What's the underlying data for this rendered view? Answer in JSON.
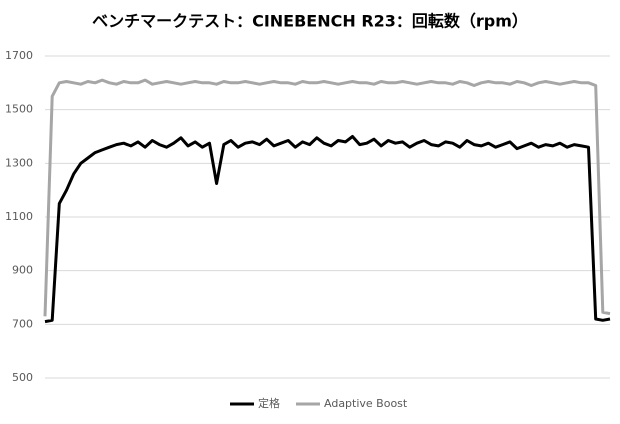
{
  "chart_data": {
    "type": "line",
    "title": "ベンチマークテスト：CINEBENCH R23：回転数（rpm）",
    "ylim": [
      500,
      1700
    ],
    "yticks": [
      500,
      700,
      900,
      1100,
      1300,
      1500,
      1700
    ],
    "grid": true,
    "legend": "bottom",
    "series": [
      {
        "name": "定格",
        "color": "#000000",
        "values": [
          710,
          715,
          1150,
          1200,
          1260,
          1300,
          1320,
          1340,
          1350,
          1360,
          1370,
          1375,
          1365,
          1380,
          1360,
          1385,
          1370,
          1360,
          1375,
          1395,
          1365,
          1380,
          1360,
          1375,
          1225,
          1370,
          1385,
          1360,
          1375,
          1380,
          1370,
          1390,
          1365,
          1375,
          1385,
          1360,
          1380,
          1370,
          1395,
          1375,
          1365,
          1385,
          1380,
          1400,
          1370,
          1375,
          1390,
          1365,
          1385,
          1375,
          1380,
          1360,
          1375,
          1385,
          1370,
          1365,
          1380,
          1375,
          1360,
          1385,
          1370,
          1365,
          1375,
          1360,
          1370,
          1380,
          1355,
          1365,
          1375,
          1360,
          1370,
          1365,
          1375,
          1360,
          1370,
          1365,
          1360,
          720,
          715,
          720
        ]
      },
      {
        "name": "Adaptive Boost",
        "color": "#a6a6a6",
        "values": [
          730,
          1550,
          1600,
          1605,
          1600,
          1595,
          1605,
          1600,
          1610,
          1600,
          1595,
          1605,
          1600,
          1600,
          1610,
          1595,
          1600,
          1605,
          1600,
          1595,
          1600,
          1605,
          1600,
          1600,
          1595,
          1605,
          1600,
          1600,
          1605,
          1600,
          1595,
          1600,
          1605,
          1600,
          1600,
          1595,
          1605,
          1600,
          1600,
          1605,
          1600,
          1595,
          1600,
          1605,
          1600,
          1600,
          1595,
          1605,
          1600,
          1600,
          1605,
          1600,
          1595,
          1600,
          1605,
          1600,
          1600,
          1595,
          1605,
          1600,
          1590,
          1600,
          1605,
          1600,
          1600,
          1595,
          1605,
          1600,
          1590,
          1600,
          1605,
          1600,
          1595,
          1600,
          1605,
          1600,
          1600,
          1590,
          745,
          740
        ]
      }
    ]
  }
}
